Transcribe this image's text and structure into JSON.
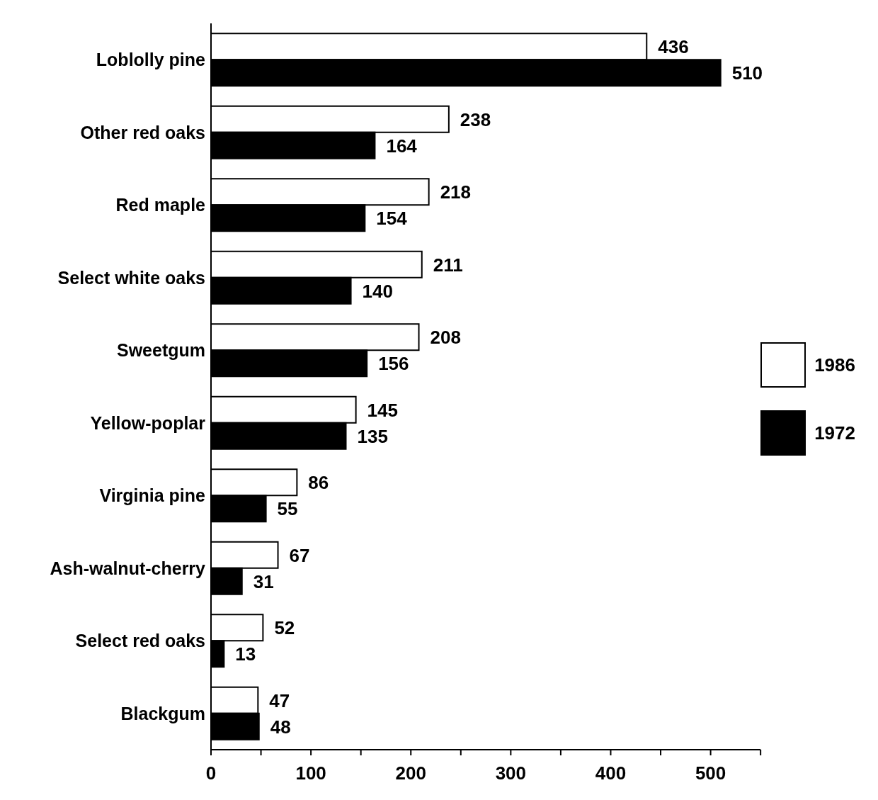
{
  "chart_data": {
    "type": "bar",
    "orientation": "horizontal",
    "categories": [
      "Loblolly pine",
      "Other red oaks",
      "Red maple",
      "Select white oaks",
      "Sweetgum",
      "Yellow-poplar",
      "Virginia pine",
      "Ash-walnut-cherry",
      "Select red oaks",
      "Blackgum"
    ],
    "series": [
      {
        "name": "1986",
        "color": "#ffffff",
        "values": [
          436,
          238,
          218,
          211,
          208,
          145,
          86,
          67,
          52,
          47
        ]
      },
      {
        "name": "1972",
        "color": "#000000",
        "values": [
          510,
          164,
          154,
          140,
          156,
          135,
          55,
          31,
          13,
          48
        ]
      }
    ],
    "xlim": [
      0,
      550
    ],
    "xticks": [
      0,
      {
        "value": 50,
        "label": null
      },
      100,
      {
        "value": 150,
        "label": null
      },
      200,
      {
        "value": 250,
        "label": null
      },
      300,
      {
        "value": 350,
        "label": null
      },
      400,
      {
        "value": 450,
        "label": null
      },
      500,
      {
        "value": 550,
        "label": null
      }
    ],
    "data_labels": true,
    "legend": "right",
    "grid": false
  }
}
